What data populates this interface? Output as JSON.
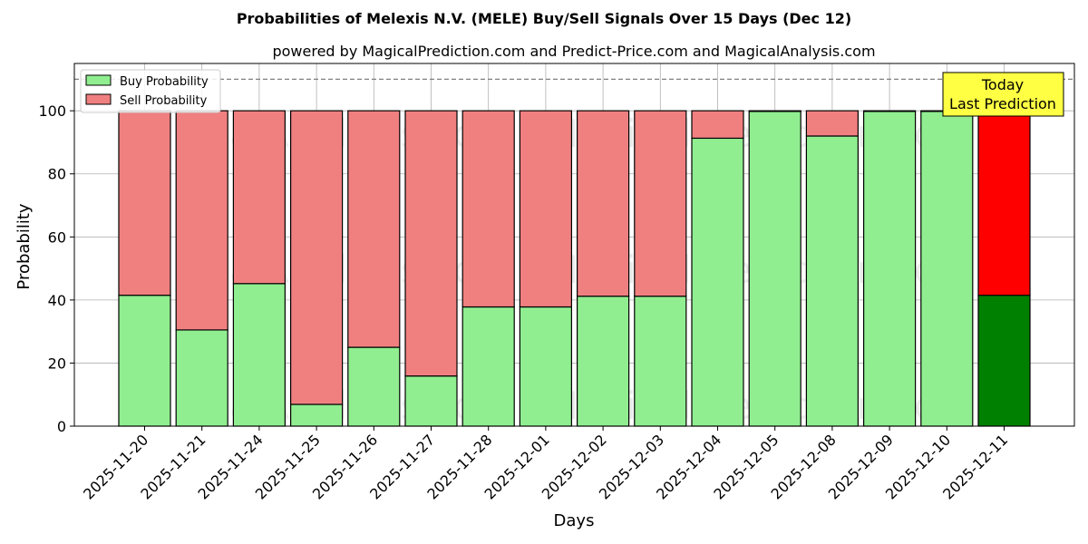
{
  "chart_data": {
    "type": "bar",
    "stacked": true,
    "title": "Probabilities of Melexis N.V. (MELE) Buy/Sell Signals Over 15 Days (Dec 12)",
    "subtitle": "powered by MagicalPrediction.com and Predict-Price.com and MagicalAnalysis.com",
    "xlabel": "Days",
    "ylabel": "Probability",
    "ylim": [
      0,
      115
    ],
    "yticks": [
      0,
      20,
      40,
      60,
      80,
      100
    ],
    "grid": true,
    "legend_position": "top-left",
    "categories": [
      "2025-11-20",
      "2025-11-21",
      "2025-11-24",
      "2025-11-25",
      "2025-11-26",
      "2025-11-27",
      "2025-11-28",
      "2025-12-01",
      "2025-12-02",
      "2025-12-03",
      "2025-12-04",
      "2025-12-05",
      "2025-12-08",
      "2025-12-09",
      "2025-12-10",
      "2025-12-11"
    ],
    "series": [
      {
        "name": "Buy Probability",
        "color": "#90ee90",
        "values": [
          41.5,
          30.5,
          45.2,
          6.9,
          25.0,
          15.9,
          37.8,
          37.8,
          41.2,
          41.2,
          91.3,
          99.8,
          92.0,
          99.8,
          99.8,
          41.5
        ]
      },
      {
        "name": "Sell Probability",
        "color": "#f08080",
        "values": [
          58.5,
          69.5,
          54.8,
          93.1,
          75.0,
          84.1,
          62.2,
          62.2,
          58.8,
          58.8,
          8.7,
          0.2,
          8.0,
          0.2,
          0.2,
          58.5
        ]
      }
    ],
    "highlight": {
      "index": 15,
      "buy_color": "#008000",
      "sell_color": "#ff0000"
    },
    "reference_line": {
      "y": 110,
      "style": "dashed",
      "color": "#808080"
    },
    "annotation": {
      "lines": [
        "Today",
        "Last Prediction"
      ],
      "background": "#ffff44"
    },
    "watermarks": [
      "MagicalAnalysis.com",
      "MagicalPrediction.com"
    ]
  }
}
